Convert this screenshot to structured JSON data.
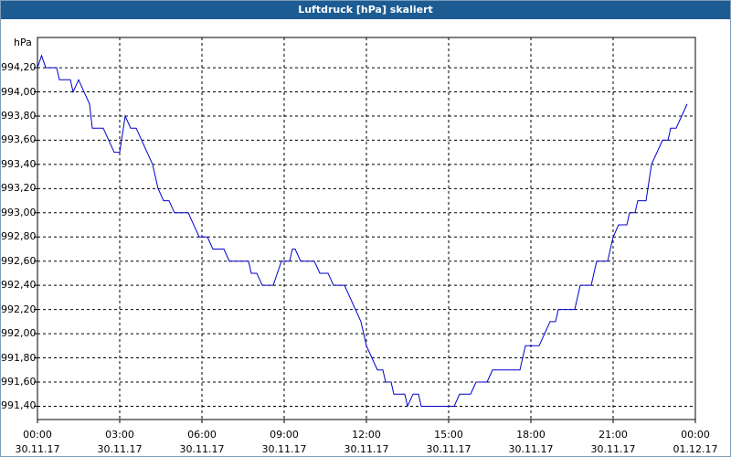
{
  "chart_data": {
    "type": "line",
    "title": "Luftdruck [hPa] skaliert",
    "y_unit": "hPa",
    "x": [
      0,
      0.15,
      0.3,
      0.7,
      0.8,
      1.2,
      1.3,
      1.5,
      1.7,
      1.9,
      2.0,
      2.4,
      2.6,
      2.8,
      3.0,
      3.2,
      3.4,
      3.6,
      3.8,
      4.0,
      4.2,
      4.4,
      4.6,
      4.8,
      5.0,
      5.5,
      5.7,
      5.9,
      6.2,
      6.4,
      6.8,
      7.0,
      7.7,
      7.8,
      8.0,
      8.2,
      8.6,
      8.9,
      9.2,
      9.3,
      9.4,
      9.6,
      10.1,
      10.3,
      10.6,
      10.8,
      11.2,
      11.4,
      11.6,
      11.8,
      12.0,
      12.2,
      12.4,
      12.6,
      12.7,
      12.9,
      13.0,
      13.4,
      13.5,
      13.7,
      13.9,
      14.0,
      15.0,
      15.2,
      15.4,
      15.8,
      16.0,
      16.4,
      16.6,
      17.6,
      17.8,
      18.3,
      18.5,
      18.7,
      18.9,
      19.0,
      19.6,
      19.8,
      20.2,
      20.4,
      20.8,
      21.0,
      21.2,
      21.5,
      21.6,
      21.8,
      21.9,
      22.2,
      22.4,
      22.6,
      22.8,
      23.0,
      23.1,
      23.3,
      23.5,
      23.7
    ],
    "series": [
      {
        "name": "Luftdruck",
        "color": "#0000cc",
        "values": [
          994.2,
          994.3,
          994.2,
          994.2,
          994.1,
          994.1,
          994.0,
          994.1,
          994.0,
          993.9,
          993.7,
          993.7,
          993.6,
          993.5,
          993.5,
          993.8,
          993.7,
          993.7,
          993.6,
          993.5,
          993.4,
          993.2,
          993.1,
          993.1,
          993.0,
          993.0,
          992.9,
          992.8,
          992.8,
          992.7,
          992.7,
          992.6,
          992.6,
          992.5,
          992.5,
          992.4,
          992.4,
          992.6,
          992.6,
          992.7,
          992.7,
          992.6,
          992.6,
          992.5,
          992.5,
          992.4,
          992.4,
          992.3,
          992.2,
          992.1,
          991.9,
          991.8,
          991.7,
          991.7,
          991.6,
          991.6,
          991.5,
          991.5,
          991.4,
          991.5,
          991.5,
          991.4,
          991.4,
          991.4,
          991.5,
          991.5,
          991.6,
          991.6,
          991.7,
          991.7,
          991.9,
          991.9,
          992.0,
          992.1,
          992.1,
          992.2,
          992.2,
          992.4,
          992.4,
          992.6,
          992.6,
          992.8,
          992.9,
          992.9,
          993.0,
          993.0,
          993.1,
          993.1,
          993.4,
          993.5,
          993.6,
          993.6,
          993.7,
          993.7,
          993.8,
          993.9
        ]
      }
    ],
    "xlim": [
      0,
      24
    ],
    "xticks": [
      {
        "value": 0,
        "label": "00:00\n30.11.17"
      },
      {
        "value": 3,
        "label": "03:00\n30.11.17"
      },
      {
        "value": 6,
        "label": "06:00\n30.11.17"
      },
      {
        "value": 9,
        "label": "09:00\n30.11.17"
      },
      {
        "value": 12,
        "label": "12:00\n30.11.17"
      },
      {
        "value": 15,
        "label": "15:00\n30.11.17"
      },
      {
        "value": 18,
        "label": "18:00\n30.11.17"
      },
      {
        "value": 21,
        "label": "21:00\n30.11.17"
      },
      {
        "value": 24,
        "label": "00:00\n01.12.17"
      }
    ],
    "ylim": [
      991.29,
      994.45
    ],
    "yticks": [
      {
        "value": 991.4,
        "label": "991,40"
      },
      {
        "value": 991.6,
        "label": "991,60"
      },
      {
        "value": 991.8,
        "label": "991,80"
      },
      {
        "value": 992.0,
        "label": "992,00"
      },
      {
        "value": 992.2,
        "label": "992,20"
      },
      {
        "value": 992.4,
        "label": "992,40"
      },
      {
        "value": 992.6,
        "label": "992,60"
      },
      {
        "value": 992.8,
        "label": "992,80"
      },
      {
        "value": 993.0,
        "label": "993,00"
      },
      {
        "value": 993.2,
        "label": "993,20"
      },
      {
        "value": 993.4,
        "label": "993,40"
      },
      {
        "value": 993.6,
        "label": "993,60"
      },
      {
        "value": 993.8,
        "label": "993,80"
      },
      {
        "value": 994.0,
        "label": "994,00"
      },
      {
        "value": 994.2,
        "label": "994,20"
      }
    ],
    "grid": true
  }
}
